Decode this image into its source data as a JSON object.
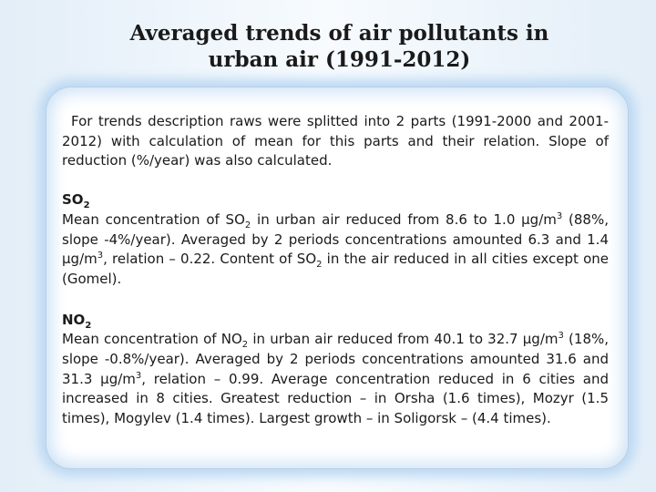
{
  "title": {
    "line1": "Averaged trends of air pollutants in",
    "line2": "urban air  (1991-2012)"
  },
  "intro": "For trends description raws were splitted into 2 parts (1991-2000 and 2001-2012) with calculation of mean for this parts and their relation. Slope of reduction (%/year) was also calculated.",
  "so2": {
    "label_base": "SO",
    "label_sub": "2",
    "t1": "Mean concentration of SO",
    "sub1": "2",
    "t2": " in urban air reduced from 8.6 to 1.0 μg/m",
    "sup1": "3",
    "t3": " (88%, slope -4%/year). Averaged by 2 periods concentrations amounted 6.3 and 1.4 μg/m",
    "sup2": "3",
    "t4": ", relation – 0.22. Content of SO",
    "sub2": "2",
    "t5": " in the air reduced in all cities except one (Gomel)."
  },
  "no2": {
    "label_base": "NO",
    "label_sub": "2",
    "t1": "Mean concentration of NO",
    "sub1": "2",
    "t2": " in urban air reduced from 40.1 to 32.7 μg/m",
    "sup1": "3",
    "t3": " (18%, slope -0.8%/year). Averaged by 2 periods concentrations amounted 31.6 and 31.3 μg/m",
    "sup2": "3",
    "t4": ", relation – 0.99. Average concentration reduced in 6 cities and increased in 8 cities. Greatest reduction – in Orsha (1.6 times), Mozyr (1.5 times), Mogylev (1.4 times). Largest growth – in Soligorsk – (4.4 times)."
  }
}
